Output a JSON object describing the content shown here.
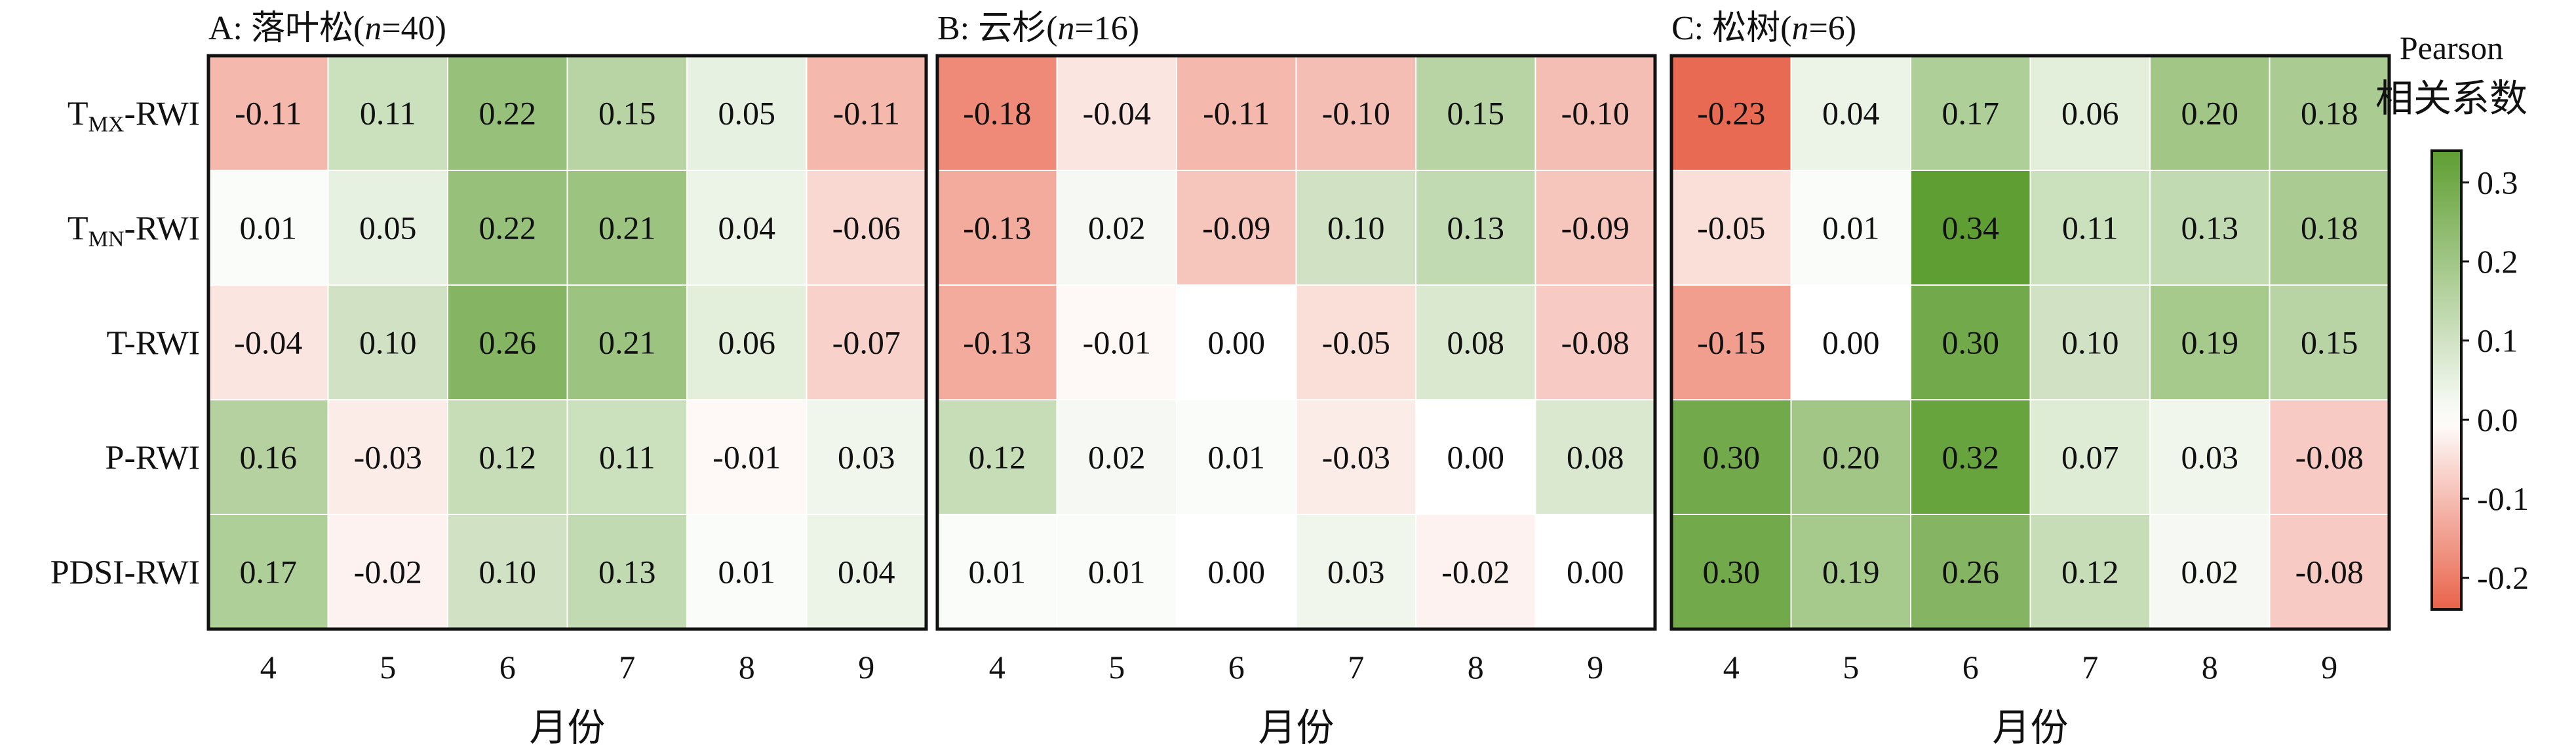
{
  "chart_data": {
    "type": "heatmap",
    "row_labels": [
      {
        "main": "T",
        "sub": "MX",
        "suffix": "-RWI"
      },
      {
        "main": "T",
        "sub": "MN",
        "suffix": "-RWI"
      },
      {
        "main": "T-RWI",
        "sub": "",
        "suffix": ""
      },
      {
        "main": "P-RWI",
        "sub": "",
        "suffix": ""
      },
      {
        "main": "PDSI-RWI",
        "sub": "",
        "suffix": ""
      }
    ],
    "categories": [
      "4",
      "5",
      "6",
      "7",
      "8",
      "9"
    ],
    "xlabel": "月份",
    "panels": [
      {
        "title_prefix": "A: 落叶松(",
        "title_n": "n",
        "title_suffix": "=40)",
        "values": [
          [
            -0.11,
            0.11,
            0.22,
            0.15,
            0.05,
            -0.11
          ],
          [
            0.01,
            0.05,
            0.22,
            0.21,
            0.04,
            -0.06
          ],
          [
            -0.04,
            0.1,
            0.26,
            0.21,
            0.06,
            -0.07
          ],
          [
            0.16,
            -0.03,
            0.12,
            0.11,
            -0.01,
            0.03
          ],
          [
            0.17,
            -0.02,
            0.1,
            0.13,
            0.01,
            0.04
          ]
        ]
      },
      {
        "title_prefix": "B: 云杉(",
        "title_n": "n",
        "title_suffix": "=16)",
        "values": [
          [
            -0.18,
            -0.04,
            -0.11,
            -0.1,
            0.15,
            -0.1
          ],
          [
            -0.13,
            0.02,
            -0.09,
            0.1,
            0.13,
            -0.09
          ],
          [
            -0.13,
            -0.01,
            0.0,
            -0.05,
            0.08,
            -0.08
          ],
          [
            0.12,
            0.02,
            0.01,
            -0.03,
            0.0,
            0.08
          ],
          [
            0.01,
            0.01,
            0.0,
            0.03,
            -0.02,
            0.0
          ]
        ]
      },
      {
        "title_prefix": "C: 松树(",
        "title_n": "n",
        "title_suffix": "=6)",
        "values": [
          [
            -0.23,
            0.04,
            0.17,
            0.06,
            0.2,
            0.18
          ],
          [
            -0.05,
            0.01,
            0.34,
            0.11,
            0.13,
            0.18
          ],
          [
            -0.15,
            0.0,
            0.3,
            0.1,
            0.19,
            0.15
          ],
          [
            0.3,
            0.2,
            0.32,
            0.07,
            0.03,
            -0.08
          ],
          [
            0.3,
            0.19,
            0.26,
            0.12,
            0.02,
            -0.08
          ]
        ]
      }
    ],
    "colorbar": {
      "title_line1": "Pearson",
      "title_line2": "相关系数",
      "ticks": [
        "0.3",
        "0.2",
        "0.1",
        "0.0",
        "-0.1",
        "-0.2"
      ],
      "tick_values": [
        0.3,
        0.2,
        0.1,
        0.0,
        -0.1,
        -0.2
      ],
      "range": [
        -0.24,
        0.34
      ],
      "pos_color": "#5f9e32",
      "neutral_color": "#ffffff",
      "neg_color": "#e8634a"
    }
  }
}
